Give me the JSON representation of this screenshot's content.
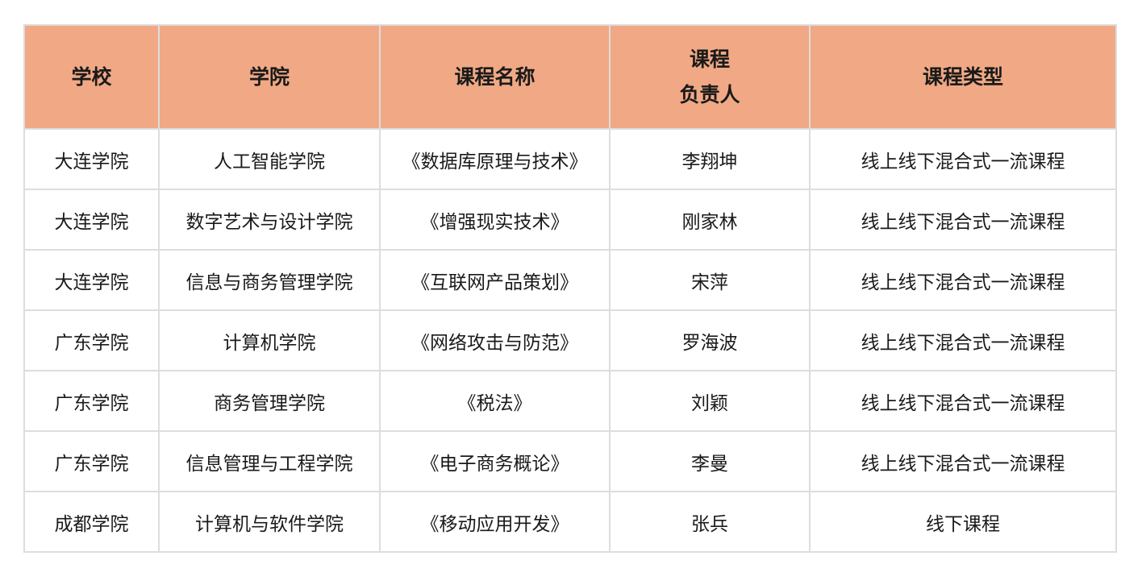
{
  "colors": {
    "header_bg": "#f0a984",
    "border": "#dddddd"
  },
  "table": {
    "headers": [
      "学校",
      "学院",
      "课程名称",
      "课程\n负责人",
      "课程类型"
    ],
    "header_lines": {
      "h3a": "课程",
      "h3b": "负责人"
    },
    "rows": [
      [
        "大连学院",
        "人工智能学院",
        "《数据库原理与技术》",
        "李翔坤",
        "线上线下混合式一流课程"
      ],
      [
        "大连学院",
        "数字艺术与设计学院",
        "《增强现实技术》",
        "刚家林",
        "线上线下混合式一流课程"
      ],
      [
        "大连学院",
        "信息与商务管理学院",
        "《互联网产品策划》",
        "宋萍",
        "线上线下混合式一流课程"
      ],
      [
        "广东学院",
        "计算机学院",
        "《网络攻击与防范》",
        "罗海波",
        "线上线下混合式一流课程"
      ],
      [
        "广东学院",
        "商务管理学院",
        "《税法》",
        "刘颖",
        "线上线下混合式一流课程"
      ],
      [
        "广东学院",
        "信息管理与工程学院",
        "《电子商务概论》",
        "李曼",
        "线上线下混合式一流课程"
      ],
      [
        "成都学院",
        "计算机与软件学院",
        "《移动应用开发》",
        "张兵",
        "线下课程"
      ]
    ]
  }
}
